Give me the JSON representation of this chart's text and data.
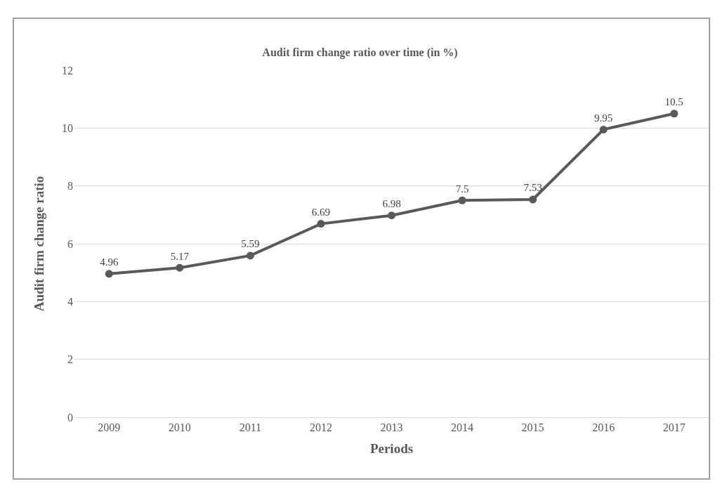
{
  "chart_data": {
    "type": "line",
    "title": "Audit firm change ratio over time (in %)",
    "xlabel": "Periods",
    "ylabel": "Audit firm change ratio",
    "categories": [
      "2009",
      "2010",
      "2011",
      "2012",
      "2013",
      "2014",
      "2015",
      "2016",
      "2017"
    ],
    "series": [
      {
        "color": "#595959",
        "values": [
          4.96,
          5.17,
          5.59,
          6.69,
          6.98,
          7.5,
          7.53,
          9.95,
          10.5
        ]
      }
    ],
    "ylim": [
      0,
      12
    ],
    "yticks": [
      0,
      2,
      4,
      6,
      8,
      10,
      12
    ],
    "grid": "y",
    "marker": "circle",
    "line_style": "solid",
    "data_labels": true
  }
}
